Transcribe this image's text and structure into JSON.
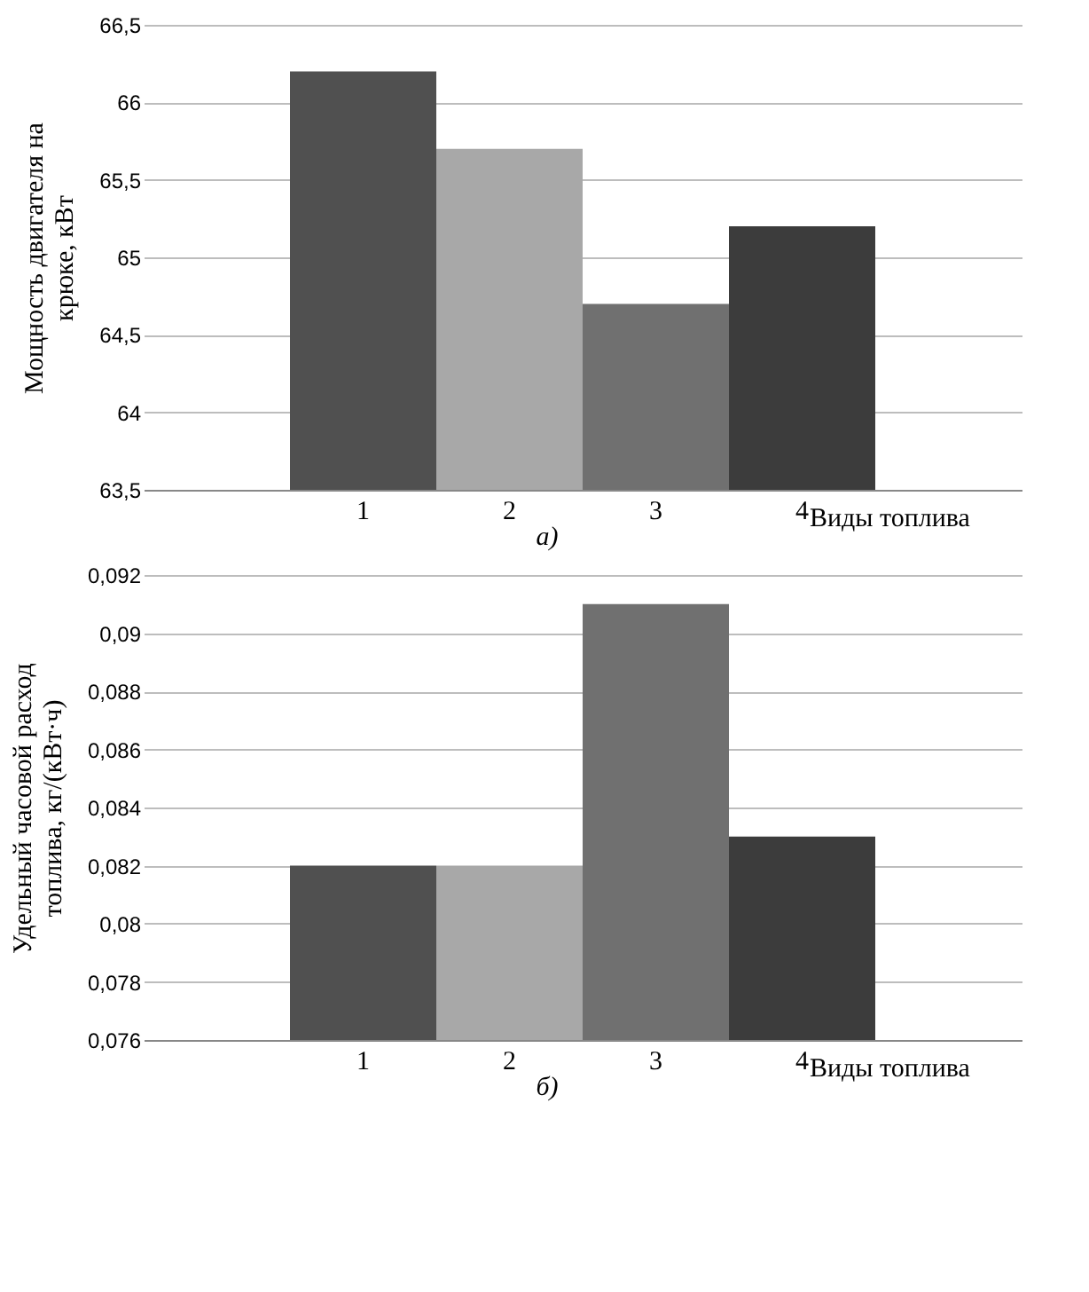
{
  "chart_data": [
    {
      "type": "bar",
      "categories": [
        "1",
        "2",
        "3",
        "4"
      ],
      "values": [
        66.2,
        65.7,
        64.7,
        65.2
      ],
      "colors": [
        "#505050",
        "#a8a8a8",
        "#707070",
        "#3c3c3c"
      ],
      "ylabel": "Мощность двигателя на крюке, кВт",
      "xlabel": "Виды топлива",
      "annotations": [
        "а)"
      ],
      "ylim": [
        63.5,
        66.5
      ],
      "yticks": [
        {
          "value": 63.5,
          "label": "63,5"
        },
        64,
        {
          "value": 64.5,
          "label": "64,5"
        },
        65,
        {
          "value": 65.5,
          "label": "65,5"
        },
        66,
        {
          "value": 66.5,
          "label": "66,5"
        }
      ],
      "grid": "y"
    },
    {
      "type": "bar",
      "categories": [
        "1",
        "2",
        "3",
        "4"
      ],
      "values": [
        0.082,
        0.082,
        0.091,
        0.083
      ],
      "colors": [
        "#505050",
        "#a8a8a8",
        "#707070",
        "#3c3c3c"
      ],
      "ylabel": "Удельный часовой расход топлива, кг/(кВт·ч)",
      "xlabel": "Виды топлива",
      "annotations": [
        "б)"
      ],
      "ylim": [
        0.076,
        0.092
      ],
      "yticks": [
        {
          "value": 0.076,
          "label": "0,076"
        },
        {
          "value": 0.078,
          "label": "0,078"
        },
        {
          "value": 0.08,
          "label": "0,08"
        },
        {
          "value": 0.082,
          "label": "0,082"
        },
        {
          "value": 0.084,
          "label": "0,084"
        },
        {
          "value": 0.086,
          "label": "0,086"
        },
        {
          "value": 0.088,
          "label": "0,088"
        },
        {
          "value": 0.09,
          "label": "0,09"
        },
        {
          "value": 0.092,
          "label": "0,092"
        }
      ],
      "grid": "y"
    }
  ]
}
